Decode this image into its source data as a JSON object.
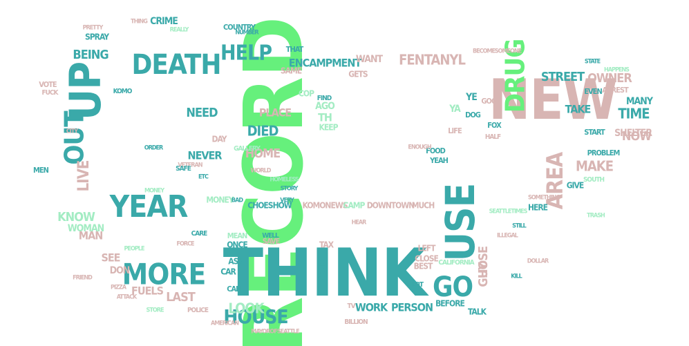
{
  "palette": {
    "green": "#66f07c",
    "teal": "#3aa9a9",
    "pink": "#d8b5b3",
    "mint": "#a3ecc3",
    "background": "#ffffff"
  },
  "words": [
    {
      "text": "RECORD",
      "color": "green"
    },
    {
      "text": "THINK",
      "color": "teal"
    },
    {
      "text": "NEW",
      "color": "pink"
    },
    {
      "text": "UP",
      "color": "teal"
    },
    {
      "text": "DEATH",
      "color": "teal"
    },
    {
      "text": "OUT",
      "color": "teal"
    },
    {
      "text": "YEAR",
      "color": "teal"
    },
    {
      "text": "MORE",
      "color": "teal"
    },
    {
      "text": "USE",
      "color": "teal"
    },
    {
      "text": "GO",
      "color": "teal"
    },
    {
      "text": "DRUG",
      "color": "green"
    },
    {
      "text": "HELP",
      "color": "teal"
    },
    {
      "text": "AREA",
      "color": "pink"
    },
    {
      "text": "HOUSE",
      "color": "teal"
    },
    {
      "text": "LIVE",
      "color": "pink"
    },
    {
      "text": "LOOK",
      "color": "mint"
    },
    {
      "text": "BEING",
      "color": "teal"
    },
    {
      "text": "FENTANYL",
      "color": "pink"
    },
    {
      "text": "ENCAMPMENT",
      "color": "teal"
    },
    {
      "text": "STREET",
      "color": "teal"
    },
    {
      "text": "WORK",
      "color": "teal"
    },
    {
      "text": "PERSON",
      "color": "teal"
    },
    {
      "text": "NEED",
      "color": "teal"
    },
    {
      "text": "DIED",
      "color": "teal"
    },
    {
      "text": "HOME",
      "color": "pink"
    },
    {
      "text": "NEVER",
      "color": "teal"
    },
    {
      "text": "TIME",
      "color": "teal"
    },
    {
      "text": "MAKE",
      "color": "pink"
    },
    {
      "text": "LAST",
      "color": "pink"
    },
    {
      "text": "HOSE",
      "color": "pink"
    },
    {
      "text": "GUY",
      "color": "pink"
    },
    {
      "text": "KNOW",
      "color": "mint"
    },
    {
      "text": "WOMAN",
      "color": "mint"
    },
    {
      "text": "MAN",
      "color": "pink"
    },
    {
      "text": "SEE",
      "color": "pink"
    },
    {
      "text": "DON",
      "color": "pink"
    },
    {
      "text": "FUELS",
      "color": "pink"
    },
    {
      "text": "SHELTER",
      "color": "pink"
    },
    {
      "text": "TAKE",
      "color": "teal"
    },
    {
      "text": "NOW",
      "color": "pink"
    },
    {
      "text": "MANY",
      "color": "teal"
    },
    {
      "text": "OWNER",
      "color": "pink"
    },
    {
      "text": "PLACE",
      "color": "pink"
    },
    {
      "text": "WANT",
      "color": "pink"
    },
    {
      "text": "CRIME",
      "color": "teal"
    },
    {
      "text": "MONEY",
      "color": "mint"
    },
    {
      "text": "CHOESHOW",
      "color": "teal"
    },
    {
      "text": "KOMONEWS",
      "color": "pink"
    },
    {
      "text": "CAMP",
      "color": "mint"
    },
    {
      "text": "DOWNTOWN",
      "color": "pink"
    },
    {
      "text": "MUCH",
      "color": "pink"
    },
    {
      "text": "BEFORE",
      "color": "teal"
    },
    {
      "text": "TALK",
      "color": "teal"
    },
    {
      "text": "GIVE",
      "color": "teal"
    },
    {
      "text": "HERE",
      "color": "teal"
    },
    {
      "text": "SPRAY",
      "color": "teal"
    },
    {
      "text": "COUNTRY",
      "color": "teal"
    },
    {
      "text": "YE",
      "color": "teal"
    },
    {
      "text": "YA",
      "color": "mint"
    },
    {
      "text": "TH",
      "color": "mint"
    },
    {
      "text": "AGO",
      "color": "mint"
    },
    {
      "text": "KEEP",
      "color": "mint"
    },
    {
      "text": "FIND",
      "color": "teal"
    },
    {
      "text": "GALLERY",
      "color": "mint"
    },
    {
      "text": "SAME",
      "color": "pink"
    },
    {
      "text": "GETS",
      "color": "pink"
    },
    {
      "text": "COP",
      "color": "mint"
    },
    {
      "text": "THAT",
      "color": "teal"
    },
    {
      "text": "DAY",
      "color": "pink"
    },
    {
      "text": "VOTE",
      "color": "pink"
    },
    {
      "text": "START",
      "color": "teal"
    },
    {
      "text": "EVEN",
      "color": "teal"
    },
    {
      "text": "ARREST",
      "color": "pink"
    },
    {
      "text": "PROBLEM",
      "color": "teal"
    },
    {
      "text": "SOUTH",
      "color": "mint"
    },
    {
      "text": "CALIFORNIA",
      "color": "mint"
    },
    {
      "text": "LEFT",
      "color": "pink"
    },
    {
      "text": "CLOSE",
      "color": "pink"
    },
    {
      "text": "BEST",
      "color": "pink"
    },
    {
      "text": "TAX",
      "color": "pink"
    },
    {
      "text": "SEND",
      "color": "teal"
    },
    {
      "text": "CAR",
      "color": "teal"
    },
    {
      "text": "ASK",
      "color": "teal"
    },
    {
      "text": "ONCE",
      "color": "teal"
    },
    {
      "text": "MEAN",
      "color": "mint"
    },
    {
      "text": "SAVE",
      "color": "pink"
    },
    {
      "text": "WELL",
      "color": "teal"
    },
    {
      "text": "TV",
      "color": "pink"
    },
    {
      "text": "BILLION",
      "color": "pink"
    },
    {
      "text": "POLICE",
      "color": "pink"
    },
    {
      "text": "AMERICAN",
      "color": "pink"
    },
    {
      "text": "MAYOROFSEATTLE",
      "color": "pink"
    },
    {
      "text": "SEATTLETIMES",
      "color": "mint"
    },
    {
      "text": "SOMETHING",
      "color": "pink"
    },
    {
      "text": "SOMEONE",
      "color": "pink"
    },
    {
      "text": "BECOME",
      "color": "pink"
    },
    {
      "text": "STATE",
      "color": "teal"
    },
    {
      "text": "HAPPENS",
      "color": "mint"
    },
    {
      "text": "VETERAN",
      "color": "pink"
    },
    {
      "text": "WORLD",
      "color": "pink"
    },
    {
      "text": "ORDER",
      "color": "teal"
    },
    {
      "text": "STORY",
      "color": "teal"
    },
    {
      "text": "CARE",
      "color": "teal"
    },
    {
      "text": "BAD",
      "color": "teal"
    },
    {
      "text": "VERY",
      "color": "teal"
    },
    {
      "text": "FORCE",
      "color": "pink"
    },
    {
      "text": "FOOD",
      "color": "teal"
    },
    {
      "text": "YEAH",
      "color": "teal"
    },
    {
      "text": "ENOUGH",
      "color": "pink"
    },
    {
      "text": "HEAR",
      "color": "pink"
    },
    {
      "text": "KOMO",
      "color": "teal"
    },
    {
      "text": "PRETTY",
      "color": "pink"
    },
    {
      "text": "REALLY",
      "color": "mint"
    },
    {
      "text": "THING",
      "color": "pink"
    },
    {
      "text": "MONEY",
      "color": "mint"
    },
    {
      "text": "STILL",
      "color": "teal"
    },
    {
      "text": "ILLEGAL",
      "color": "pink"
    },
    {
      "text": "DOLLAR",
      "color": "pink"
    },
    {
      "text": "CALL",
      "color": "teal"
    },
    {
      "text": "PIZZA",
      "color": "pink"
    },
    {
      "text": "STORE",
      "color": "mint"
    },
    {
      "text": "ATTACK",
      "color": "pink"
    },
    {
      "text": "FRIEND",
      "color": "pink"
    },
    {
      "text": "KILL",
      "color": "teal"
    },
    {
      "text": "LOT",
      "color": "teal"
    },
    {
      "text": "LIFE",
      "color": "pink"
    },
    {
      "text": "DOG",
      "color": "teal"
    },
    {
      "text": "FOX",
      "color": "teal"
    },
    {
      "text": "HALF",
      "color": "pink"
    },
    {
      "text": "TRASH",
      "color": "mint"
    },
    {
      "text": "HOMELESS",
      "color": "mint"
    },
    {
      "text": "SAFE",
      "color": "teal"
    },
    {
      "text": "NUMBER",
      "color": "teal"
    },
    {
      "text": "FUCK",
      "color": "pink"
    },
    {
      "text": "MEN",
      "color": "teal"
    },
    {
      "text": "PEOPLE",
      "color": "mint"
    },
    {
      "text": "GOOD",
      "color": "pink"
    },
    {
      "text": "CITY",
      "color": "pink"
    },
    {
      "text": "ETC",
      "color": "teal"
    }
  ]
}
